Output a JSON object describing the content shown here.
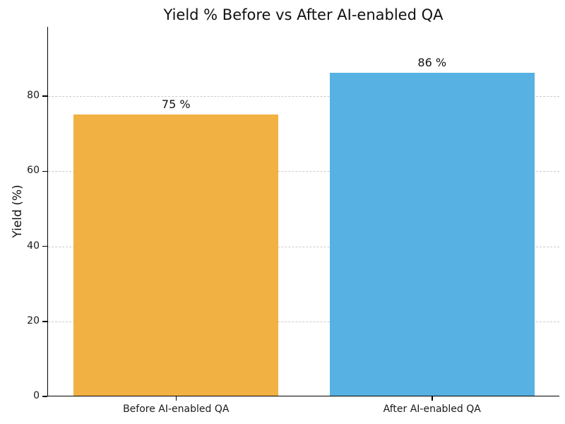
{
  "chart_data": {
    "type": "bar",
    "title": "Yield % Before vs After AI-enabled QA",
    "xlabel": "",
    "ylabel": "Yield (%)",
    "categories": [
      "Before AI-enabled QA",
      "After AI-enabled QA"
    ],
    "values": [
      75,
      86
    ],
    "value_labels": [
      "75 %",
      "86 %"
    ],
    "bar_colors": [
      "#F2B143",
      "#57B1E2"
    ],
    "ylim": [
      0,
      98.5
    ],
    "yticks": [
      0,
      20,
      40,
      60,
      80
    ],
    "grid": "horizontal dashed gridlines at y ticks",
    "gridline_color": "#cccccc",
    "legend": "none",
    "bar_width_fraction": 0.8
  }
}
